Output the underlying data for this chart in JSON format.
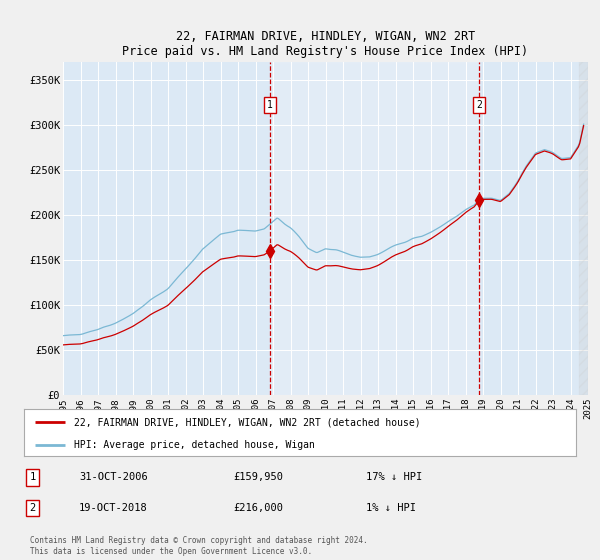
{
  "title": "22, FAIRMAN DRIVE, HINDLEY, WIGAN, WN2 2RT",
  "subtitle": "Price paid vs. HM Land Registry's House Price Index (HPI)",
  "ylim": [
    0,
    370000
  ],
  "yticks": [
    0,
    50000,
    100000,
    150000,
    200000,
    250000,
    300000,
    350000
  ],
  "ytick_labels": [
    "£0",
    "£50K",
    "£100K",
    "£150K",
    "£200K",
    "£250K",
    "£300K",
    "£350K"
  ],
  "plot_bg_color": "#dce9f5",
  "grid_color": "#ffffff",
  "fig_bg_color": "#f0f0f0",
  "sale1_date": "31-OCT-2006",
  "sale1_price": 159950,
  "sale1_hpi_diff": "17% ↓ HPI",
  "sale2_date": "19-OCT-2018",
  "sale2_price": 216000,
  "sale2_hpi_diff": "1% ↓ HPI",
  "legend_label1": "22, FAIRMAN DRIVE, HINDLEY, WIGAN, WN2 2RT (detached house)",
  "legend_label2": "HPI: Average price, detached house, Wigan",
  "copyright_text": "Contains HM Land Registry data © Crown copyright and database right 2024.\nThis data is licensed under the Open Government Licence v3.0.",
  "sale1_x": 2006.83,
  "sale2_x": 2018.79,
  "xmin": 1995,
  "xmax": 2025,
  "hatch_start": 2024.5,
  "red_color": "#cc0000",
  "blue_color": "#7bb8d4"
}
